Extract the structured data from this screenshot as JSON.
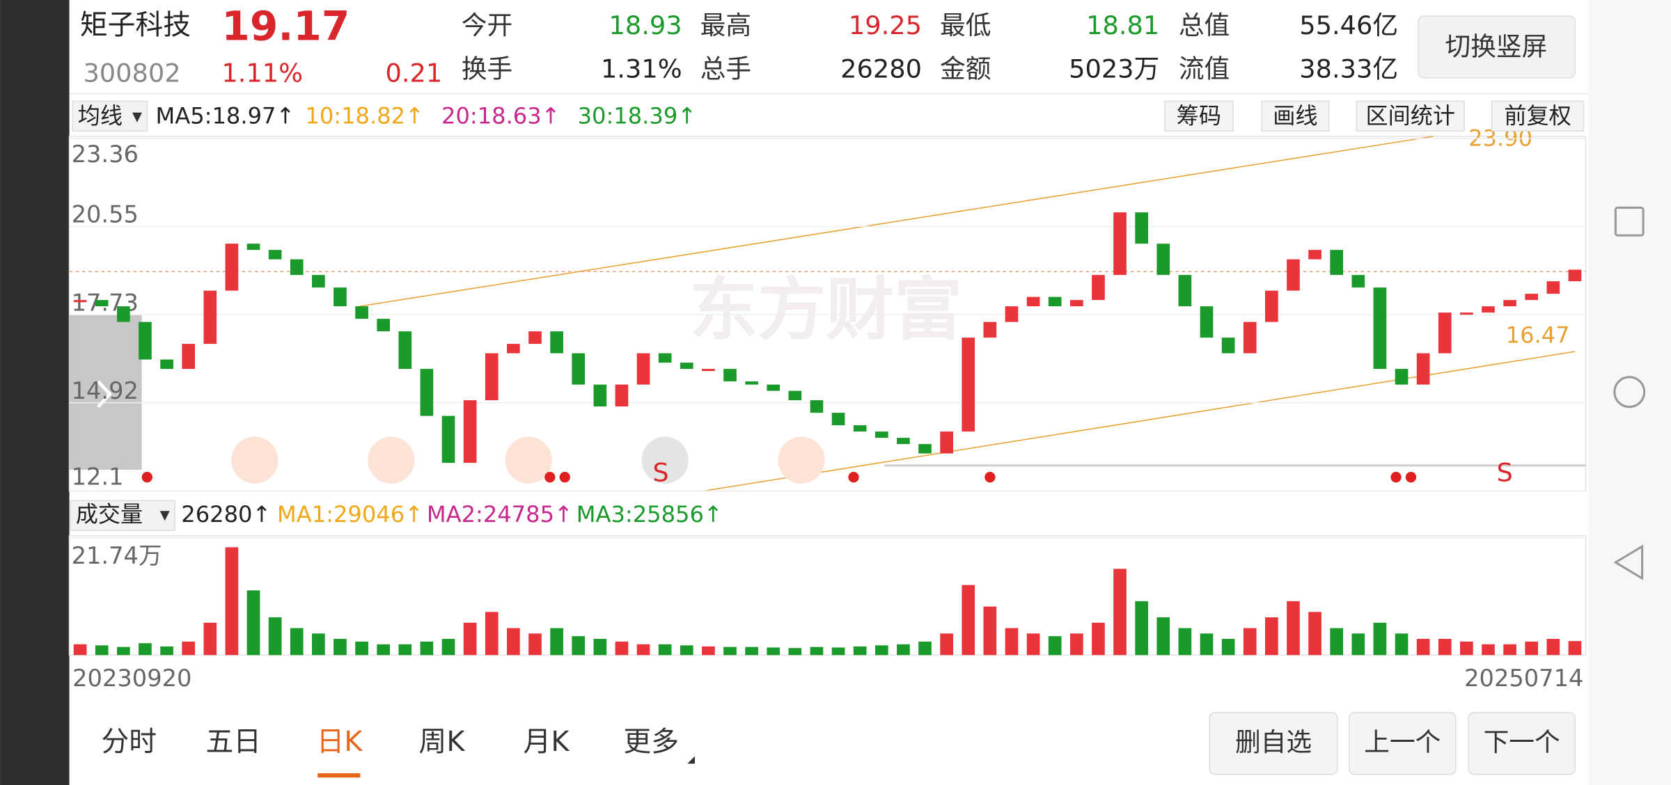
{
  "header": {
    "name": "矩子科技",
    "price": "19.17",
    "code": "300802",
    "change_pct": "1.11%",
    "change": "0.21",
    "stats": [
      {
        "label": "今开",
        "value": "18.93",
        "color": "#1a9a2a"
      },
      {
        "label": "最高",
        "value": "19.25",
        "color": "#d9262c"
      },
      {
        "label": "最低",
        "value": "18.81",
        "color": "#1a9a2a"
      },
      {
        "label": "总值",
        "value": "55.46亿",
        "color": "#222222"
      },
      {
        "label": "换手",
        "value": "1.31%",
        "color": "#222222"
      },
      {
        "label": "总手",
        "value": "26280",
        "color": "#222222"
      },
      {
        "label": "金额",
        "value": "5023万",
        "color": "#222222"
      },
      {
        "label": "流值",
        "value": "38.33亿",
        "color": "#222222"
      }
    ],
    "switch_button": "切换竖屏"
  },
  "ma_bar": {
    "selector": "均线",
    "items": [
      {
        "text": "MA5:18.97↑",
        "color": "#222222"
      },
      {
        "text": "10:18.82↑",
        "color": "#f0a818"
      },
      {
        "text": "20:18.63↑",
        "color": "#c8288c"
      },
      {
        "text": "30:18.39↑",
        "color": "#1a9a2a"
      }
    ],
    "tools": [
      "筹码",
      "画线",
      "区间统计",
      "前复权"
    ]
  },
  "chart_data": [
    {
      "type": "candlestick",
      "ylim": [
        12.1,
        23.36
      ],
      "yticks": [
        23.36,
        20.55,
        17.73,
        14.92,
        12.1
      ],
      "up_color": "#e8343a",
      "down_color": "#1a9a2a",
      "close": [
        18.2,
        18.0,
        17.5,
        16.3,
        16.0,
        16.8,
        18.5,
        20.0,
        19.8,
        19.5,
        19.0,
        18.6,
        18.0,
        17.6,
        17.2,
        16.0,
        14.5,
        13.0,
        15.0,
        16.5,
        16.8,
        17.2,
        16.5,
        15.5,
        14.8,
        15.5,
        16.5,
        16.2,
        16.0,
        16.0,
        15.6,
        15.5,
        15.3,
        15.0,
        14.6,
        14.2,
        14.0,
        13.8,
        13.6,
        13.3,
        14.0,
        17.0,
        17.5,
        18.0,
        18.3,
        18.0,
        18.2,
        19.0,
        21.0,
        20.0,
        19.0,
        18.0,
        17.0,
        16.5,
        17.5,
        18.5,
        19.5,
        19.8,
        19.0,
        18.6,
        16.0,
        15.5,
        16.5,
        17.8,
        17.8,
        18.0,
        18.2,
        18.4,
        18.8,
        19.17
      ],
      "annotations": [
        "23.90",
        "16.47"
      ],
      "markers": [
        "S",
        "S"
      ],
      "watermark": "东方财富"
    },
    {
      "type": "bar",
      "selector": "成交量",
      "items": [
        {
          "text": "26280↑",
          "color": "#222222"
        },
        {
          "text": "MA1:29046↑",
          "color": "#f0a818"
        },
        {
          "text": "MA2:24785↑",
          "color": "#c8288c"
        },
        {
          "text": "MA3:25856↑",
          "color": "#1a9a2a"
        }
      ],
      "ylim": [
        0,
        21.74
      ],
      "yticks": [
        {
          "value": 21.74,
          "label": "21.74万"
        }
      ],
      "values": [
        2,
        1.8,
        1.5,
        2.2,
        1.6,
        2.5,
        6,
        20,
        12,
        7,
        5,
        4,
        3,
        2.5,
        2,
        2,
        2.5,
        3,
        6,
        8,
        5,
        4,
        5,
        3.5,
        3,
        2.5,
        2,
        2,
        1.8,
        1.6,
        1.5,
        1.5,
        1.4,
        1.3,
        1.5,
        1.4,
        1.6,
        1.8,
        2,
        2.5,
        4,
        13,
        9,
        5,
        4,
        3.5,
        4,
        6,
        16,
        10,
        7,
        5,
        4,
        3,
        5,
        7,
        10,
        8,
        5,
        4,
        6,
        4,
        3,
        3,
        2.5,
        2,
        2,
        2.5,
        3,
        2.6
      ],
      "x_labels": [
        "20230920",
        "20250714"
      ]
    }
  ],
  "tabs": [
    "分时",
    "五日",
    "日K",
    "周K",
    "月K",
    "更多"
  ],
  "active_tab": 2,
  "buttons": [
    "删自选",
    "上一个",
    "下一个"
  ]
}
